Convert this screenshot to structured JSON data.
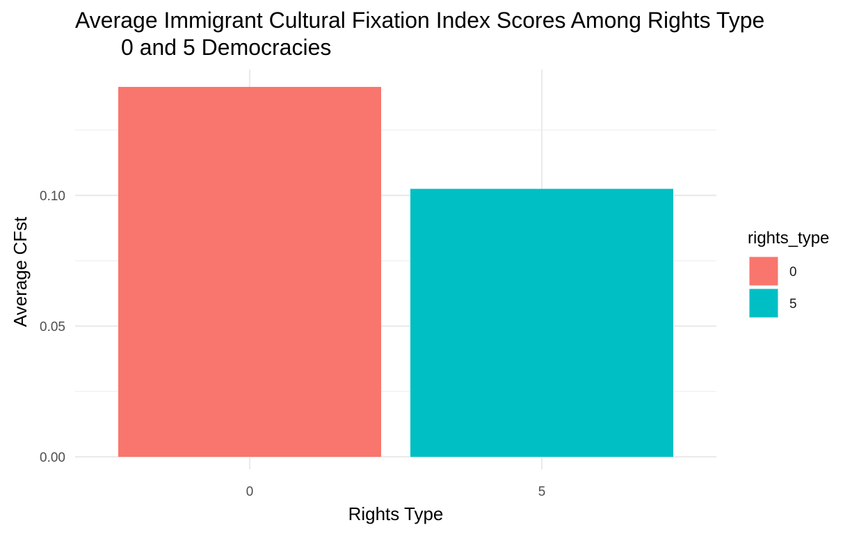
{
  "chart_data": {
    "type": "bar",
    "title": "Average Immigrant Cultural Fixation Index Scores Among Rights Type",
    "subtitle": "0 and 5 Democracies",
    "xlabel": "Rights Type",
    "ylabel": "Average CFst",
    "categories": [
      "0",
      "5"
    ],
    "values": [
      0.1415,
      0.1025
    ],
    "colors": [
      "#F8766D",
      "#00BFC4"
    ],
    "ylim": [
      0,
      0.15
    ],
    "yticks": [
      0.0,
      0.05,
      0.1
    ],
    "ytick_labels": [
      "0.00",
      "0.05",
      "0.10"
    ],
    "grid": true,
    "legend": {
      "title": "rights_type",
      "position": "right",
      "entries": [
        {
          "label": "0",
          "color": "#F8766D"
        },
        {
          "label": "5",
          "color": "#00BFC4"
        }
      ]
    }
  }
}
